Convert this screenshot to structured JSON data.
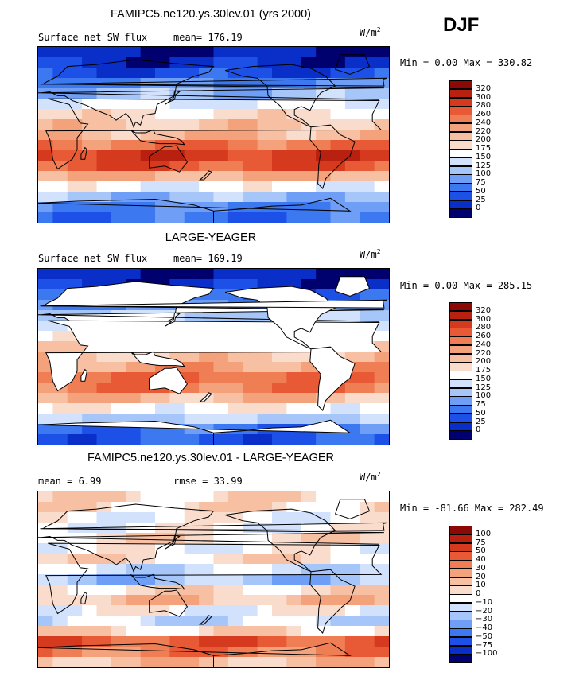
{
  "season": "DJF",
  "units_base": "W/m",
  "units_exp": "2",
  "colors": {
    "abs_scale": [
      "#00006e",
      "#0a2ec8",
      "#1c50e6",
      "#3c78f0",
      "#6e9ef5",
      "#a6c6fa",
      "#d2e2fc",
      "#ffffff",
      "#fadccd",
      "#f7c0a3",
      "#f4a27b",
      "#f07e55",
      "#e85a36",
      "#d63a1e",
      "#b8200f",
      "#8c0a05"
    ],
    "diff_scale": [
      "#00006e",
      "#0a2ec8",
      "#1c50e6",
      "#3c78f0",
      "#6e9ef5",
      "#a6c6fa",
      "#d2e2fc",
      "#ffffff",
      "#fadccd",
      "#f7c0a3",
      "#f4a27b",
      "#f07e55",
      "#e85a36",
      "#d63a1e",
      "#b8200f",
      "#8c0a05"
    ],
    "land_outline": "#000000"
  },
  "panels": [
    {
      "title": "FAMIPC5.ne120.ys.30lev.01 (yrs 2000)",
      "left_label": "Surface net SW flux",
      "right_label": "mean=  176.19",
      "min_max": "Min =   0.00 Max = 330.82",
      "land_masked": false
    },
    {
      "title": "LARGE-YEAGER",
      "left_label": "Surface net SW flux",
      "right_label": "mean=  169.19",
      "min_max": "Min =   0.00 Max = 285.15",
      "land_masked": true
    },
    {
      "title": "FAMIPC5.ne120.ys.30lev.01 - LARGE-YEAGER",
      "left_label": "mean =    6.99",
      "right_label": "rmse =   33.99",
      "min_max": "Min = -81.66 Max = 282.49",
      "land_masked": false
    }
  ],
  "chart_data": [
    {
      "type": "heatmap",
      "title": "FAMIPC5.ne120.ys.30lev.01 (yrs 2000)",
      "variable": "Surface net SW flux",
      "units": "W/m2",
      "season": "DJF",
      "mean": 176.19,
      "min": 0.0,
      "max": 330.82,
      "colorbar_levels": [
        "320",
        "300",
        "280",
        "260",
        "240",
        "220",
        "200",
        "175",
        "150",
        "125",
        "100",
        "75",
        "50",
        "25",
        "0"
      ],
      "colorbar_values": [
        0,
        25,
        50,
        75,
        100,
        125,
        150,
        175,
        200,
        220,
        240,
        260,
        280,
        300,
        320
      ],
      "lat_bands": [
        {
          "lat": 80,
          "value": 5
        },
        {
          "lat": 70,
          "value": 15
        },
        {
          "lat": 60,
          "value": 35
        },
        {
          "lat": 50,
          "value": 70
        },
        {
          "lat": 40,
          "value": 110
        },
        {
          "lat": 30,
          "value": 150
        },
        {
          "lat": 20,
          "value": 185
        },
        {
          "lat": 10,
          "value": 205
        },
        {
          "lat": 0,
          "value": 215
        },
        {
          "lat": -10,
          "value": 255
        },
        {
          "lat": -20,
          "value": 290
        },
        {
          "lat": -30,
          "value": 275
        },
        {
          "lat": -40,
          "value": 220
        },
        {
          "lat": -50,
          "value": 160
        },
        {
          "lat": -60,
          "value": 110
        },
        {
          "lat": -70,
          "value": 70
        },
        {
          "lat": -80,
          "value": 60
        }
      ]
    },
    {
      "type": "heatmap",
      "title": "LARGE-YEAGER",
      "variable": "Surface net SW flux",
      "units": "W/m2",
      "season": "DJF",
      "mean": 169.19,
      "min": 0.0,
      "max": 285.15,
      "colorbar_levels": [
        "320",
        "300",
        "280",
        "260",
        "240",
        "220",
        "200",
        "175",
        "150",
        "125",
        "100",
        "75",
        "50",
        "25",
        "0"
      ],
      "colorbar_values": [
        0,
        25,
        50,
        75,
        100,
        125,
        150,
        175,
        200,
        220,
        240,
        260,
        280,
        300,
        320
      ],
      "lat_bands": [
        {
          "lat": 80,
          "value": 5
        },
        {
          "lat": 70,
          "value": 15
        },
        {
          "lat": 60,
          "value": 40
        },
        {
          "lat": 50,
          "value": 80
        },
        {
          "lat": 40,
          "value": 120
        },
        {
          "lat": 30,
          "value": 160
        },
        {
          "lat": 20,
          "value": 180
        },
        {
          "lat": 10,
          "value": 200
        },
        {
          "lat": 0,
          "value": 205
        },
        {
          "lat": -10,
          "value": 230
        },
        {
          "lat": -20,
          "value": 260
        },
        {
          "lat": -30,
          "value": 255
        },
        {
          "lat": -40,
          "value": 215
        },
        {
          "lat": -50,
          "value": 165
        },
        {
          "lat": -60,
          "value": 120
        },
        {
          "lat": -70,
          "value": 60
        },
        {
          "lat": -80,
          "value": 40
        }
      ]
    },
    {
      "type": "heatmap",
      "title": "FAMIPC5.ne120.ys.30lev.01 - LARGE-YEAGER",
      "variable": "Surface net SW flux difference",
      "units": "W/m2",
      "season": "DJF",
      "mean": 6.99,
      "rmse": 33.99,
      "min": -81.66,
      "max": 282.49,
      "colorbar_levels": [
        "100",
        "75",
        "50",
        "40",
        "30",
        "20",
        "10",
        "0",
        "−10",
        "−20",
        "−30",
        "−40",
        "−50",
        "−75",
        "−100"
      ],
      "colorbar_values": [
        -100,
        -75,
        -50,
        -40,
        -30,
        -20,
        -10,
        0,
        10,
        20,
        30,
        40,
        50,
        75,
        100
      ],
      "lat_bands": [
        {
          "lat": 80,
          "value": 5
        },
        {
          "lat": 70,
          "value": 5
        },
        {
          "lat": 60,
          "value": -5
        },
        {
          "lat": 50,
          "value": -5
        },
        {
          "lat": 40,
          "value": 5
        },
        {
          "lat": 30,
          "value": -5
        },
        {
          "lat": 20,
          "value": 5
        },
        {
          "lat": 10,
          "value": -15
        },
        {
          "lat": 0,
          "value": -25
        },
        {
          "lat": -10,
          "value": 5
        },
        {
          "lat": -20,
          "value": 15
        },
        {
          "lat": -30,
          "value": -5
        },
        {
          "lat": -40,
          "value": -15
        },
        {
          "lat": -50,
          "value": 5
        },
        {
          "lat": -60,
          "value": 45
        },
        {
          "lat": -70,
          "value": 35
        },
        {
          "lat": -80,
          "value": 15
        }
      ]
    }
  ]
}
